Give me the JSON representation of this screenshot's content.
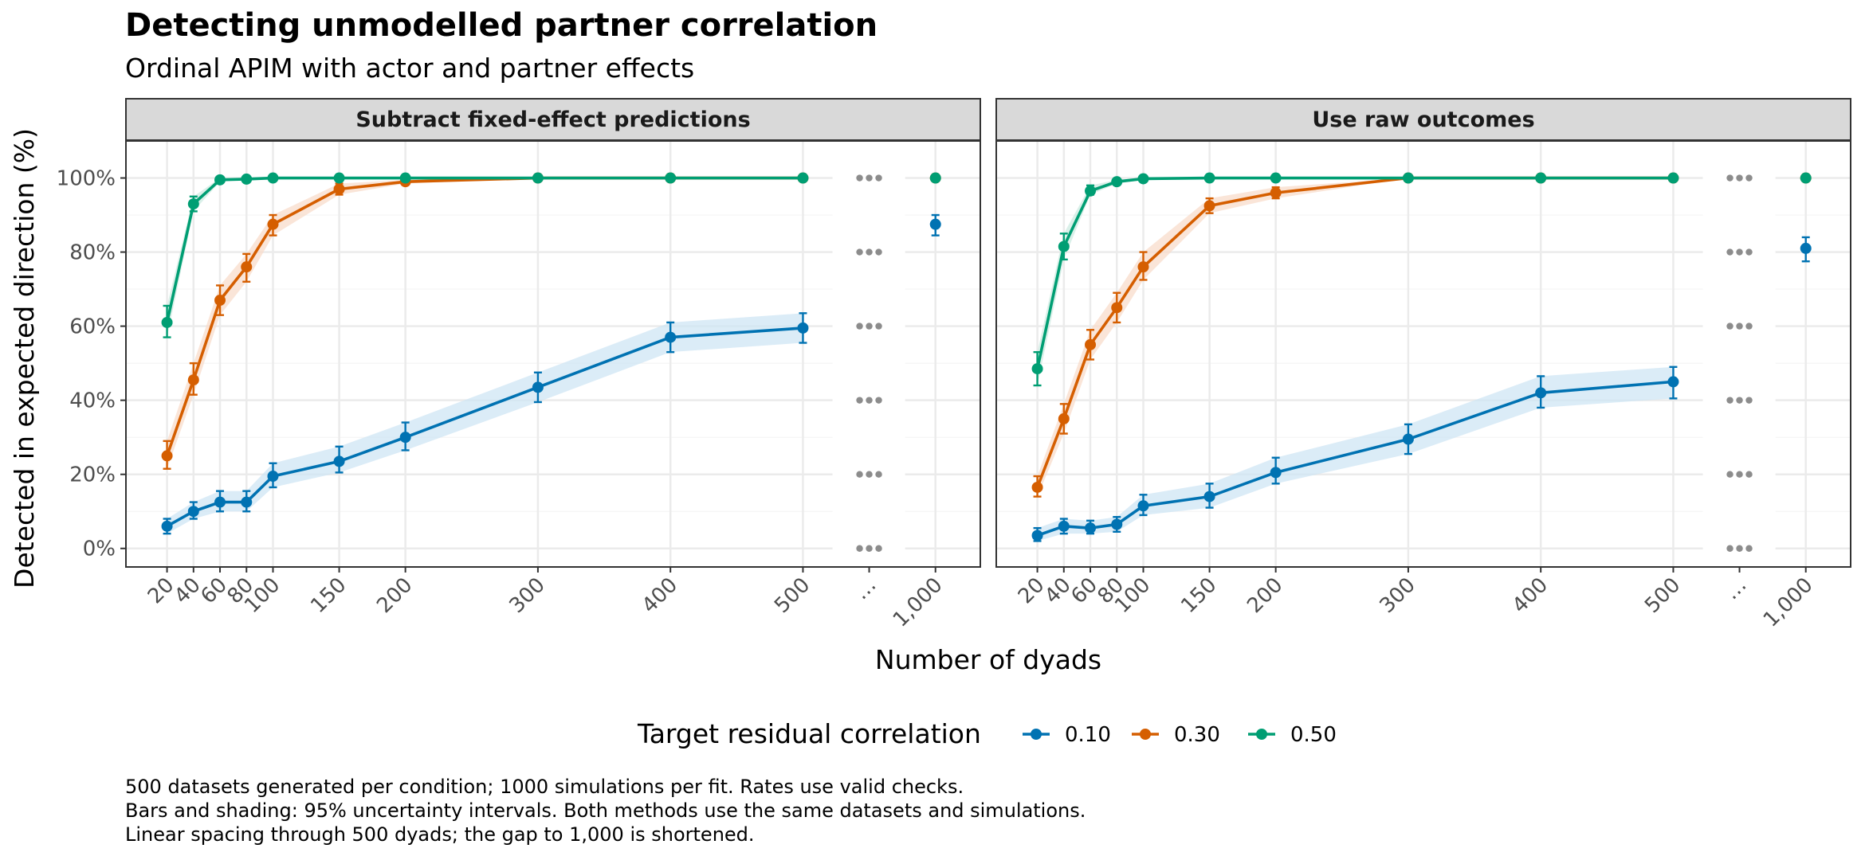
{
  "chart_data": {
    "type": "line",
    "title": "Detecting unmodelled partner correlation",
    "subtitle": "Ordinal APIM with actor and partner effects",
    "xlabel": "Number of dyads",
    "ylabel": "Detected in expected direction (%)",
    "x_ticks": [
      "20",
      "40",
      "60",
      "80",
      "100",
      "150",
      "200",
      "300",
      "400",
      "500",
      "…",
      "1,000"
    ],
    "y_ticks": [
      "0%",
      "20%",
      "40%",
      "60%",
      "80%",
      "100%"
    ],
    "ylim": [
      -5,
      110
    ],
    "legend": {
      "title": "Target residual correlation",
      "position": "bottom",
      "items": [
        {
          "label": "0.10",
          "color": "#0072B2"
        },
        {
          "label": "0.30",
          "color": "#D55E00"
        },
        {
          "label": "0.50",
          "color": "#009E73"
        }
      ]
    },
    "caption": [
      "500 datasets generated per condition; 1000 simulations per fit. Rates use valid checks.",
      "Bars and shading: 95% uncertainty intervals. Both methods use the same datasets and simulations.",
      "Linear spacing through 500 dyads; the gap to 1,000 is shortened."
    ],
    "panels": [
      {
        "strip": "Subtract fixed-effect predictions",
        "series": [
          {
            "name": "0.10",
            "x": [
              20,
              40,
              60,
              80,
              100,
              150,
              200,
              300,
              400,
              500,
              1000
            ],
            "y": [
              6,
              10,
              12.5,
              12.5,
              19.5,
              23.5,
              30,
              43.5,
              57,
              59.5,
              87.5
            ],
            "lo": [
              4,
              8,
              10,
              10,
              16.5,
              20.5,
              26.5,
              39.5,
              53,
              55.5,
              84.5
            ],
            "hi": [
              8,
              12.5,
              15.5,
              15.5,
              23,
              27.5,
              34,
              47.5,
              61,
              63.5,
              90
            ]
          },
          {
            "name": "0.30",
            "x": [
              20,
              40,
              60,
              80,
              100,
              150,
              200,
              300,
              400,
              500,
              1000
            ],
            "y": [
              25,
              45.5,
              67,
              76,
              87.5,
              97,
              99,
              100,
              100,
              100,
              100
            ],
            "lo": [
              21.5,
              41.5,
              63,
              72,
              84.5,
              95.5,
              98.5,
              100,
              100,
              100,
              100
            ],
            "hi": [
              29,
              50,
              71,
              79.5,
              90,
              98.5,
              99.5,
              100,
              100,
              100,
              100
            ]
          },
          {
            "name": "0.50",
            "x": [
              20,
              40,
              60,
              80,
              100,
              150,
              200,
              300,
              400,
              500,
              1000
            ],
            "y": [
              61,
              93,
              99.5,
              99.7,
              100,
              100,
              100,
              100,
              100,
              100,
              100
            ],
            "lo": [
              57,
              91,
              99,
              99.5,
              100,
              100,
              100,
              100,
              100,
              100,
              100
            ],
            "hi": [
              65.5,
              95,
              100,
              100,
              100,
              100,
              100,
              100,
              100,
              100,
              100
            ]
          }
        ]
      },
      {
        "strip": "Use raw outcomes",
        "series": [
          {
            "name": "0.10",
            "x": [
              20,
              40,
              60,
              80,
              100,
              150,
              200,
              300,
              400,
              500,
              1000
            ],
            "y": [
              3.5,
              6,
              5.5,
              6.5,
              11.5,
              14,
              20.5,
              29.5,
              42,
              45,
              81
            ],
            "lo": [
              2,
              4,
              4,
              4.5,
              9,
              11,
              17.5,
              25.5,
              38,
              40.5,
              77.5
            ],
            "hi": [
              5.5,
              8,
              7.5,
              8.5,
              14.5,
              17.5,
              24.5,
              33.5,
              46.5,
              49,
              84
            ]
          },
          {
            "name": "0.30",
            "x": [
              20,
              40,
              60,
              80,
              100,
              150,
              200,
              300,
              400,
              500,
              1000
            ],
            "y": [
              16.5,
              35,
              55,
              65,
              76,
              92.5,
              96,
              100,
              100,
              100,
              100
            ],
            "lo": [
              14,
              31,
              51,
              61,
              72.5,
              90.5,
              94.5,
              100,
              100,
              100,
              100
            ],
            "hi": [
              19.5,
              39,
              59,
              69,
              80,
              94.5,
              97.5,
              100,
              100,
              100,
              100
            ]
          },
          {
            "name": "0.50",
            "x": [
              20,
              40,
              60,
              80,
              100,
              150,
              200,
              300,
              400,
              500,
              1000
            ],
            "y": [
              48.5,
              81.5,
              96.5,
              99,
              99.8,
              100,
              100,
              100,
              100,
              100,
              100
            ],
            "lo": [
              44,
              78,
              95.5,
              98.5,
              99.5,
              100,
              100,
              100,
              100,
              100,
              100
            ],
            "hi": [
              53,
              85,
              98,
              99.5,
              100,
              100,
              100,
              100,
              100,
              100,
              100
            ]
          }
        ]
      }
    ]
  }
}
